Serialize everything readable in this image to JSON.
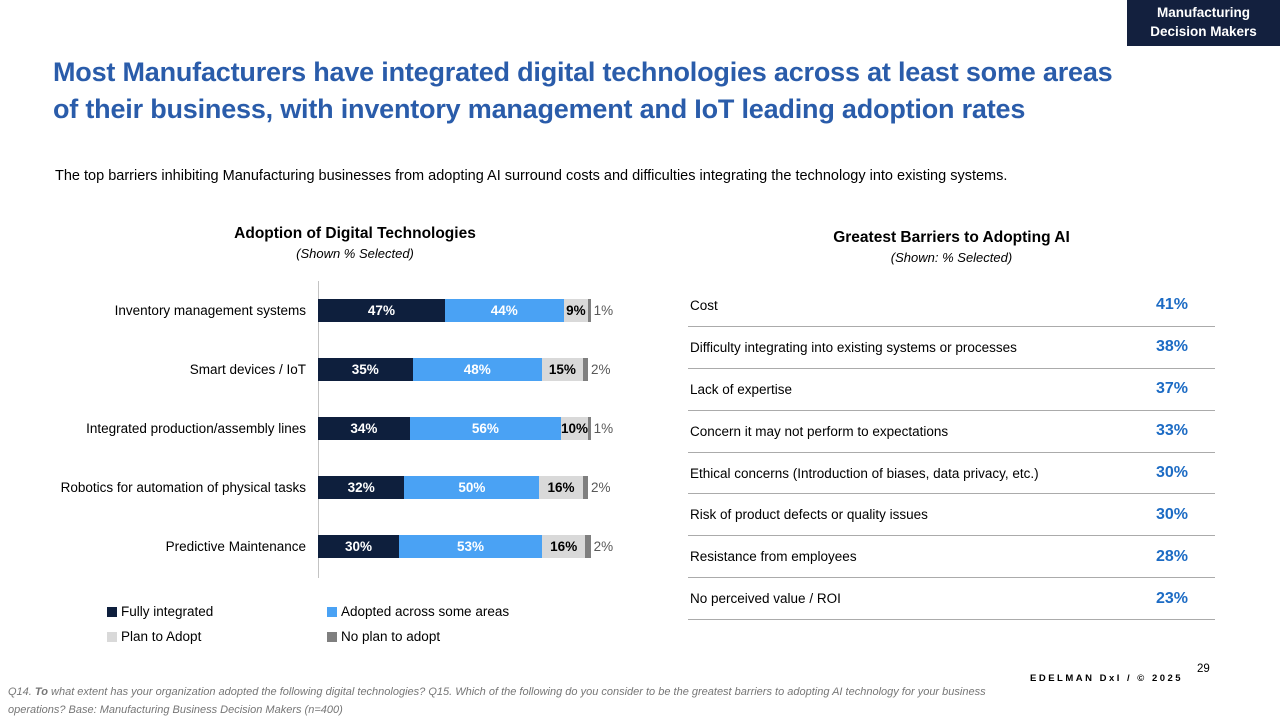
{
  "badge": {
    "line1": "Manufacturing",
    "line2": "Decision Makers"
  },
  "title": "Most Manufacturers have integrated digital technologies across at least some areas of their business, with inventory management and IoT leading adoption rates",
  "subtitle": "The top barriers inhibiting Manufacturing businesses from adopting AI surround costs and difficulties integrating the technology into existing systems.",
  "colors": {
    "title_blue": "#2A5CAA",
    "value_blue": "#1C6BC4",
    "badge_navy": "#13203E",
    "outside_label_gray": "#595959",
    "row_border_gray": "#ABABAB"
  },
  "chart_data": [
    {
      "type": "bar",
      "title": "Adoption of Digital Technologies",
      "subtitle": "(Shown % Selected)",
      "orientation": "horizontal-stacked",
      "xlim": [
        0,
        100
      ],
      "value_suffix": "%",
      "categories": [
        "Inventory management systems",
        "Smart devices / IoT",
        "Integrated production/assembly lines",
        "Robotics for automation of physical tasks",
        "Predictive Maintenance"
      ],
      "series": [
        {
          "name": "Fully integrated",
          "color": "#0E1F3D",
          "values": [
            47,
            35,
            34,
            32,
            30
          ]
        },
        {
          "name": "Adopted across some areas",
          "color": "#4AA2F4",
          "values": [
            44,
            48,
            56,
            50,
            53
          ]
        },
        {
          "name": "Plan to Adopt",
          "color": "#D9D9D9",
          "values": [
            9,
            15,
            10,
            16,
            16
          ]
        },
        {
          "name": "No plan to adopt",
          "color": "#7F7F7F",
          "values": [
            1,
            2,
            1,
            2,
            2
          ]
        }
      ]
    },
    {
      "type": "table",
      "title": "Greatest Barriers to Adopting AI",
      "subtitle": "(Shown: % Selected)",
      "value_suffix": "%",
      "rows": [
        {
          "label": "Cost",
          "value": 41
        },
        {
          "label": "Difficulty integrating into existing systems or processes",
          "value": 38
        },
        {
          "label": "Lack of expertise",
          "value": 37
        },
        {
          "label": "Concern it may not perform to expectations",
          "value": 33
        },
        {
          "label": "Ethical concerns (Introduction of biases, data privacy, etc.)",
          "value": 30
        },
        {
          "label": "Risk of product defects or quality issues",
          "value": 30
        },
        {
          "label": "Resistance from employees",
          "value": 28
        },
        {
          "label": "No perceived value / ROI",
          "value": 23
        }
      ]
    }
  ],
  "footer": {
    "part1": "Q14.",
    "bold": "To",
    "part2": "what extent has your organization adopted the following digital technologies? Q15. Which of the following do you consider to be the greatest barriers to adopting AI technology for your business operations? Base: Manufacturing Business Decision Makers  (n=400)"
  },
  "footer_right": {
    "brand": "EDELMAN DxI / © 2025",
    "page_number": "29"
  }
}
